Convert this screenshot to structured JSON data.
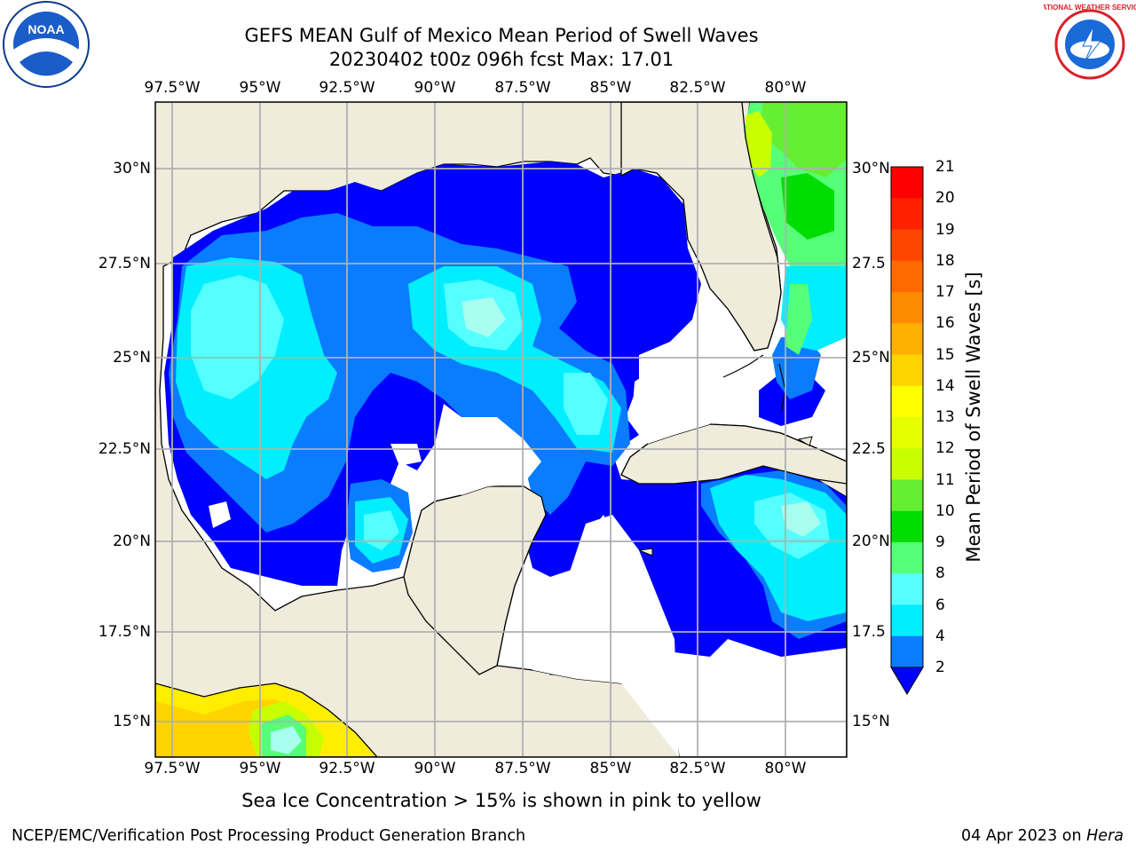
{
  "title": {
    "line1": "GEFS MEAN Gulf of Mexico Mean Period of Swell Waves",
    "line2": "20230402 t00z 096h fcst   Max: 17.01"
  },
  "map": {
    "lon_labels": [
      "97.5°W",
      "95°W",
      "92.5°W",
      "90°W",
      "87.5°W",
      "85°W",
      "82.5°W",
      "80°W"
    ],
    "lat_labels_left": [
      "30°N",
      "27.5°N",
      "25°N",
      "22.5°N",
      "20°N",
      "17.5°N",
      "15°N"
    ],
    "lat_labels_right": [
      "30°N",
      "27.5",
      "25°N",
      "22.5",
      "20°N",
      "17.5",
      "15°N"
    ],
    "colors": {
      "land": "#efecdc",
      "water_low": "#ffffff",
      "grid": "#b0b0b0",
      "coast": "#000000"
    }
  },
  "colorbar": {
    "label": "Mean Period of Swell Waves [s]",
    "ticks": [
      "21",
      "20",
      "19",
      "18",
      "17",
      "16",
      "15",
      "14",
      "13",
      "12",
      "11",
      "10",
      "9",
      "8",
      "6",
      "4",
      "2"
    ],
    "colors": [
      "#ff0000",
      "#ff2000",
      "#ff4500",
      "#ff6a00",
      "#ff8c00",
      "#ffb000",
      "#ffd400",
      "#ffff00",
      "#e6ff00",
      "#c8ff00",
      "#66ee33",
      "#00dd00",
      "#55ff77",
      "#a8fff0",
      "#55ffff",
      "#00eeff",
      "#0a7cff",
      "#0000ff"
    ]
  },
  "note": "Sea Ice Concentration > 15% is shown in pink to yellow",
  "footer": {
    "left": "NCEP/EMC/Verification Post Processing Product Generation Branch",
    "right_date": "04 Apr 2023 on ",
    "right_host": "Hera"
  },
  "logos": {
    "left": "NOAA",
    "right": "NATIONAL WEATHER SERVICE"
  }
}
